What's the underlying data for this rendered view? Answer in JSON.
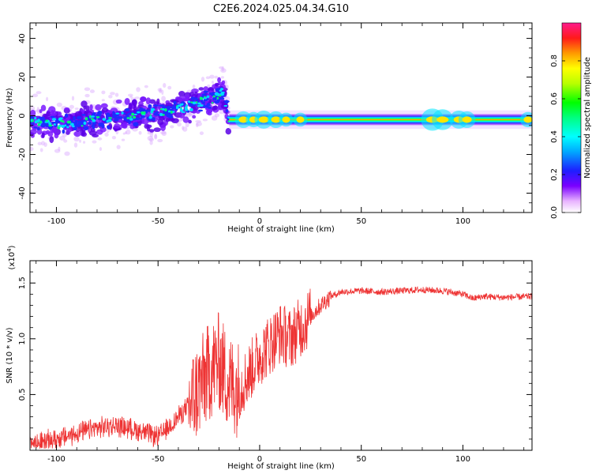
{
  "title": "C2E6.2024.025.04.34.G10",
  "chart_data": [
    {
      "type": "heatmap",
      "xlabel": "Height of straight line (km)",
      "ylabel": "Frequency (Hz)",
      "xlim": [
        -113,
        134
      ],
      "ylim": [
        -50,
        48
      ],
      "xticks": [
        -100,
        -50,
        0,
        50,
        100
      ],
      "yticks": [
        -40,
        -20,
        0,
        20,
        40
      ],
      "colorbar": {
        "label": "Normalized spectral amplitude",
        "range": [
          0,
          1
        ],
        "ticks": [
          "0.0",
          "0.2",
          "0.4",
          "0.6",
          "0.8"
        ],
        "tick_values": [
          0.0,
          0.2,
          0.4,
          0.6,
          0.8
        ]
      },
      "band": {
        "stable_x_range": [
          -15,
          134
        ],
        "noisy_x_range": [
          -113,
          -15
        ],
        "center_frequency_hz": -2,
        "halfwidth_hz": 1.5,
        "noisy_trend": [
          [
            -113,
            -3
          ],
          [
            -100,
            -4
          ],
          [
            -80,
            -2
          ],
          [
            -60,
            0
          ],
          [
            -45,
            2
          ],
          [
            -35,
            5
          ],
          [
            -25,
            8
          ],
          [
            -18,
            12
          ],
          [
            -15,
            -2
          ]
        ]
      }
    },
    {
      "type": "line",
      "xlabel": "Height of straight line (km)",
      "ylabel": "SNR (10 * v/v)",
      "yscale_label": "(x10",
      "yscale_exp": "4",
      "yscale_close": ")",
      "xlim": [
        -113,
        134
      ],
      "ylim": [
        0,
        1.7
      ],
      "xticks": [
        -100,
        -50,
        0,
        50,
        100
      ],
      "yticks": [
        0.5,
        1.0,
        1.5
      ],
      "ytick_labels": [
        "0.5",
        "1.0",
        "1.5"
      ],
      "color": "#ee3333",
      "series": [
        {
          "x": [
            -113,
            -100,
            -90,
            -80,
            -70,
            -60,
            -50,
            -45,
            -40,
            -35,
            -30,
            -25,
            -20,
            -15,
            -10,
            -5,
            0,
            5,
            10,
            15,
            20,
            25,
            30,
            35,
            40,
            50,
            60,
            70,
            80,
            90,
            100,
            105,
            110,
            120,
            134
          ],
          "y": [
            0.05,
            0.1,
            0.15,
            0.2,
            0.22,
            0.18,
            0.12,
            0.2,
            0.3,
            0.4,
            0.55,
            0.7,
            0.8,
            0.6,
            0.55,
            0.7,
            0.85,
            0.95,
            1.05,
            1.0,
            1.1,
            1.2,
            1.3,
            1.38,
            1.42,
            1.43,
            1.42,
            1.43,
            1.44,
            1.43,
            1.4,
            1.36,
            1.38,
            1.37,
            1.38
          ]
        }
      ]
    }
  ]
}
